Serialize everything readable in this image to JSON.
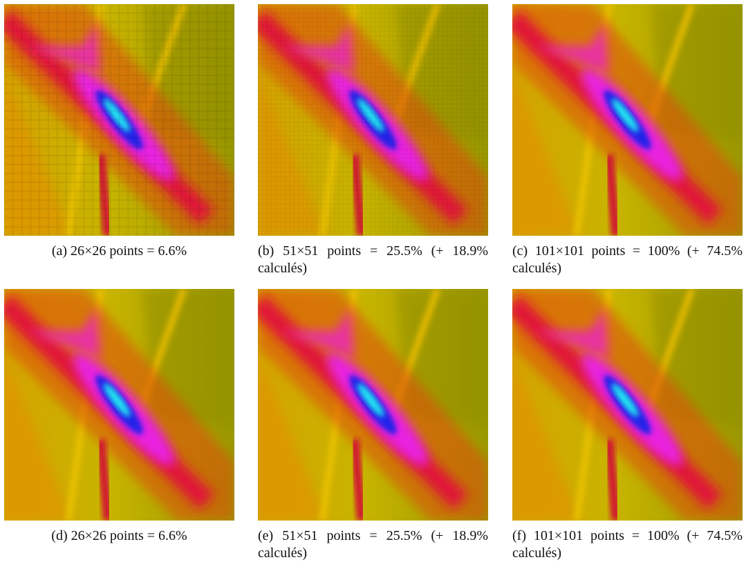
{
  "panels": [
    {
      "caption": "(a) 26×26 points = 6.6%"
    },
    {
      "caption": "(b) 51×51 points = 25.5% (+ 18.9% calculés)"
    },
    {
      "caption": "(c) 101×101 points = 100% (+ 74.5% calculés)"
    },
    {
      "caption": "(d) 26×26 points = 6.6%"
    },
    {
      "caption": "(e) 51×51 points = 25.5% (+ 18.9% calculés)"
    },
    {
      "caption": "(f) 101×101 points = 100% (+ 74.5% calculés)"
    }
  ]
}
